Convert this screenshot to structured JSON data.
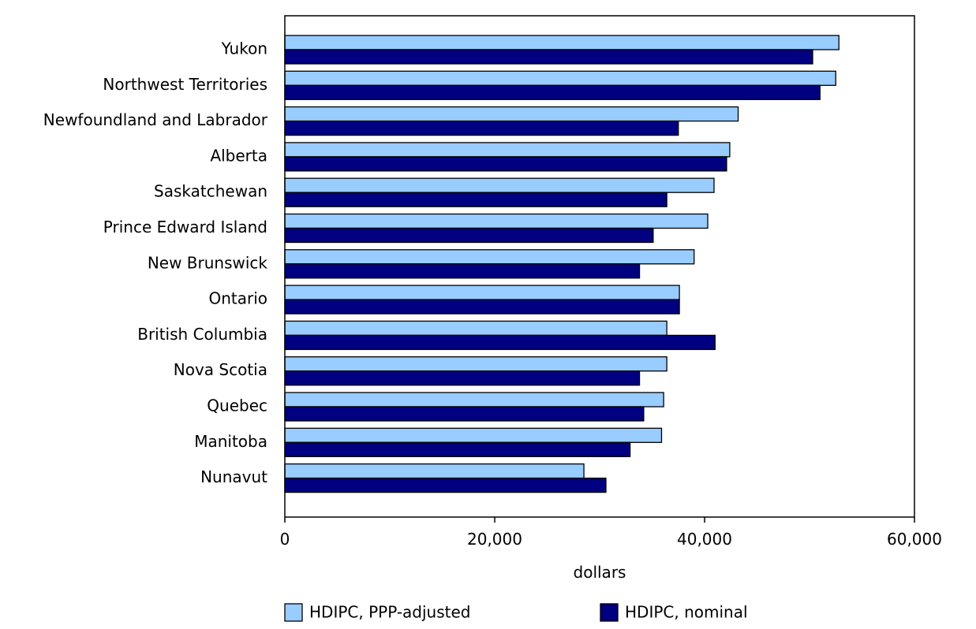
{
  "chart_data": {
    "type": "bar",
    "orientation": "horizontal",
    "categories": [
      "Yukon",
      "Northwest Territories",
      "Newfoundland and Labrador",
      "Alberta",
      "Saskatchewan",
      "Prince Edward Island",
      "New Brunswick",
      "Ontario",
      "British Columbia",
      "Nova Scotia",
      "Quebec",
      "Manitoba",
      "Nunavut"
    ],
    "series": [
      {
        "name": "HDIPC, PPP-adjusted",
        "color": "#99ccff",
        "values": [
          52800,
          52500,
          43200,
          42400,
          40900,
          40300,
          39000,
          37600,
          36400,
          36400,
          36100,
          35900,
          28500
        ]
      },
      {
        "name": "HDIPC, nominal",
        "color": "#000080",
        "values": [
          50300,
          51000,
          37500,
          42100,
          36400,
          35100,
          33800,
          37600,
          41000,
          33800,
          34200,
          32900,
          30600
        ]
      }
    ],
    "xlabel": "dollars",
    "ylabel": "",
    "xlim": [
      0,
      60000
    ],
    "xticks": [
      0,
      20000,
      40000,
      60000
    ],
    "xtick_labels": [
      "0",
      "20,000",
      "40,000",
      "60,000"
    ],
    "grid": false,
    "legend_position": "bottom"
  }
}
